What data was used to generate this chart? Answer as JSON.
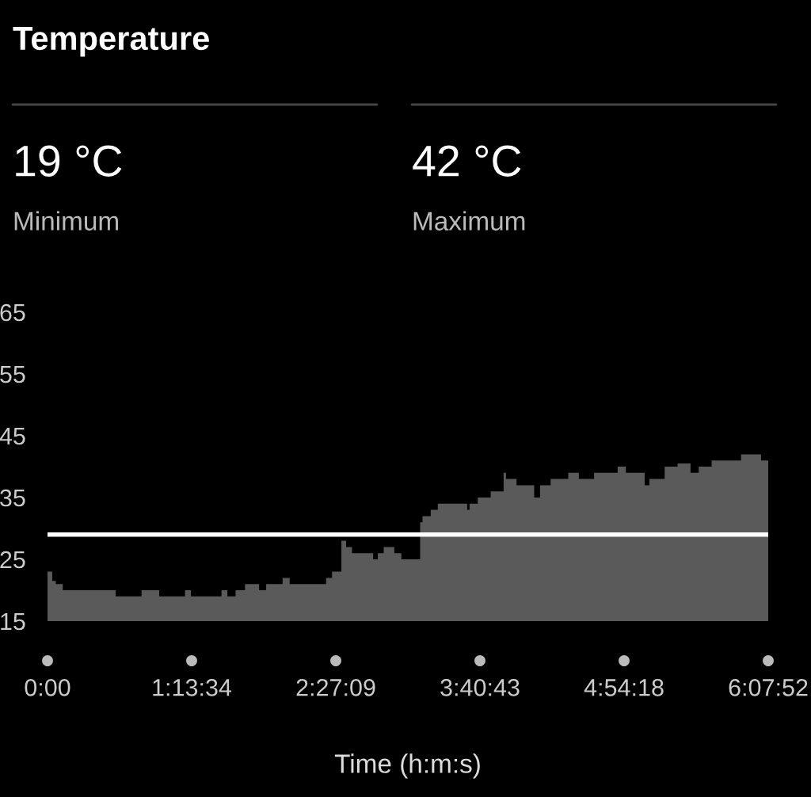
{
  "chart_data": {
    "type": "area",
    "title": "Temperature",
    "xlabel": "Time (h:m:s)",
    "annotations": [
      "19 °C",
      "Minimum",
      "42 °C",
      "Maximum"
    ],
    "x": [
      0.0,
      0.04,
      0.07,
      0.13,
      0.58,
      0.8,
      0.95,
      1.17,
      1.22,
      1.48,
      1.53,
      1.6,
      1.68,
      1.8,
      1.86,
      2.0,
      2.06,
      2.37,
      2.42,
      2.5,
      2.54,
      2.59,
      2.77,
      2.81,
      2.86,
      2.95,
      3.01,
      3.17,
      3.19,
      3.26,
      3.32,
      3.57,
      3.59,
      3.66,
      3.77,
      3.88,
      3.9,
      3.99,
      4.14,
      4.19,
      4.28,
      4.43,
      4.52,
      4.65,
      4.85,
      4.92,
      5.08,
      5.12,
      5.25,
      5.36,
      5.47,
      5.54,
      5.65,
      5.9,
      6.07,
      6.1311
    ],
    "series": [
      {
        "color": "#5a5a5a",
        "values": [
          23,
          21.5,
          21,
          20,
          19,
          20,
          19,
          20,
          19,
          20,
          19,
          20,
          21,
          20,
          21,
          22,
          21,
          22,
          23,
          28,
          27,
          26,
          25,
          26,
          27,
          26,
          25,
          31,
          32,
          33,
          34,
          33,
          34,
          35,
          36,
          39,
          38,
          37,
          35,
          37,
          38,
          39,
          38,
          39,
          40,
          39,
          37,
          38,
          40,
          40.5,
          39,
          40,
          41,
          42,
          41,
          41
        ]
      }
    ],
    "xlim": [
      0,
      6.1311
    ],
    "ylim": [
      15,
      65
    ],
    "xticks": [
      {
        "value": 0,
        "label": "0:00"
      },
      {
        "value": 1.2261,
        "label": "1:13:34"
      },
      {
        "value": 2.4525,
        "label": "2:27:09"
      },
      {
        "value": 3.6786,
        "label": "3:40:43"
      },
      {
        "value": 4.905,
        "label": "4:54:18"
      },
      {
        "value": 6.1311,
        "label": "6:07:52"
      }
    ],
    "yticks": [
      15,
      25,
      35,
      45,
      55,
      65
    ],
    "ref_lines": [
      {
        "axis": "y",
        "value": 29,
        "color": "#ffffff"
      }
    ],
    "grid": false,
    "legend": false
  }
}
